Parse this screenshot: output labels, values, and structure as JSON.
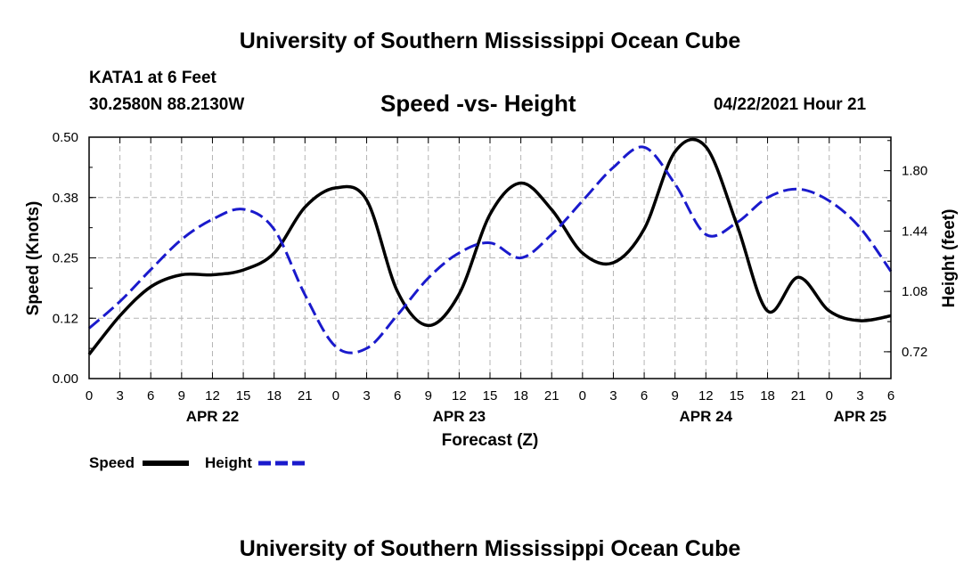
{
  "page": {
    "top_title": "University of Southern Mississippi Ocean Cube",
    "bottom_title": "University of Southern Mississippi Ocean Cube",
    "station": "KATA1 at 6 Feet",
    "coords": "30.2580N  88.2130W",
    "chart_title": "Speed -vs- Height",
    "datetime": "04/22/2021 Hour 21"
  },
  "colors": {
    "speed": "#000000",
    "height": "#1a1acc",
    "grid": "#b4b4b4"
  },
  "chart_data": {
    "type": "line",
    "title": "Speed -vs- Height",
    "xlabel": "Forecast (Z)",
    "ylabel": "Speed (Knots)",
    "y2label": "Height (feet)",
    "x_range_hours": [
      0,
      78
    ],
    "x_tick_labels": [
      "0",
      "3",
      "6",
      "9",
      "12",
      "15",
      "18",
      "21",
      "0",
      "3",
      "6",
      "9",
      "12",
      "15",
      "18",
      "21",
      "0",
      "3",
      "6",
      "9",
      "12",
      "15",
      "18",
      "21",
      "0",
      "3",
      "6"
    ],
    "x_date_labels": [
      {
        "label": "APR 22",
        "hour": 12
      },
      {
        "label": "APR 23",
        "hour": 36
      },
      {
        "label": "APR 24",
        "hour": 60
      },
      {
        "label": "APR 25",
        "hour": 75
      }
    ],
    "ylim": [
      0,
      0.5
    ],
    "y_ticks": [
      0,
      0.125,
      0.25,
      0.375,
      0.5
    ],
    "y_tick_labels": [
      "0.00",
      "0.12",
      "0.25",
      "0.38",
      "0.50"
    ],
    "y2lim": [
      0.56,
      2.0
    ],
    "y2_ticks": [
      0.72,
      1.08,
      1.44,
      1.8
    ],
    "y2_tick_labels": [
      "0.72",
      "1.08",
      "1.44",
      "1.80"
    ],
    "series": [
      {
        "name": "Speed",
        "axis": "left",
        "dash": false,
        "x": [
          0,
          3,
          6,
          9,
          12,
          15,
          18,
          21,
          24,
          27,
          30,
          33,
          36,
          39,
          42,
          45,
          48,
          51,
          54,
          57,
          60,
          63,
          66,
          69,
          72,
          75,
          78
        ],
        "values": [
          0.05,
          0.13,
          0.19,
          0.215,
          0.215,
          0.225,
          0.26,
          0.355,
          0.395,
          0.37,
          0.18,
          0.11,
          0.175,
          0.34,
          0.405,
          0.35,
          0.26,
          0.24,
          0.31,
          0.47,
          0.48,
          0.32,
          0.14,
          0.21,
          0.14,
          0.12,
          0.13
        ]
      },
      {
        "name": "Height",
        "axis": "right",
        "dash": true,
        "x": [
          0,
          3,
          6,
          9,
          12,
          15,
          18,
          21,
          24,
          27,
          30,
          33,
          36,
          39,
          42,
          45,
          48,
          51,
          54,
          57,
          60,
          63,
          66,
          69,
          72,
          75,
          78
        ],
        "values": [
          0.86,
          1.02,
          1.21,
          1.39,
          1.51,
          1.57,
          1.45,
          1.06,
          0.75,
          0.74,
          0.94,
          1.16,
          1.31,
          1.37,
          1.28,
          1.42,
          1.62,
          1.82,
          1.94,
          1.72,
          1.42,
          1.49,
          1.64,
          1.69,
          1.62,
          1.46,
          1.2
        ]
      }
    ],
    "legend": [
      {
        "label": "Speed",
        "series": "Speed"
      },
      {
        "label": "Height",
        "series": "Height"
      }
    ]
  }
}
